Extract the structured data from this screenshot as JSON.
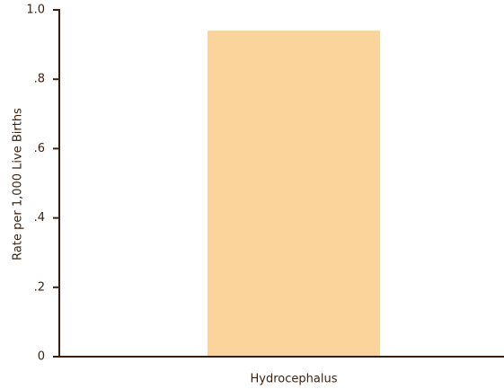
{
  "chart_data": {
    "type": "bar",
    "y_label": "Rate per 1,000 Live Births",
    "categories": [
      "Hydrocephalus"
    ],
    "values": [
      0.94
    ],
    "color": "#fad49b",
    "ylim": [
      0,
      1
    ],
    "yticks": [
      0,
      {
        "value": 0.2,
        "label": ".2"
      },
      {
        "value": 0.4,
        "label": ".4"
      },
      {
        "value": 0.6,
        "label": ".6"
      },
      {
        "value": 0.8,
        "label": ".8"
      },
      {
        "value": 1,
        "label": "1.0"
      }
    ]
  }
}
